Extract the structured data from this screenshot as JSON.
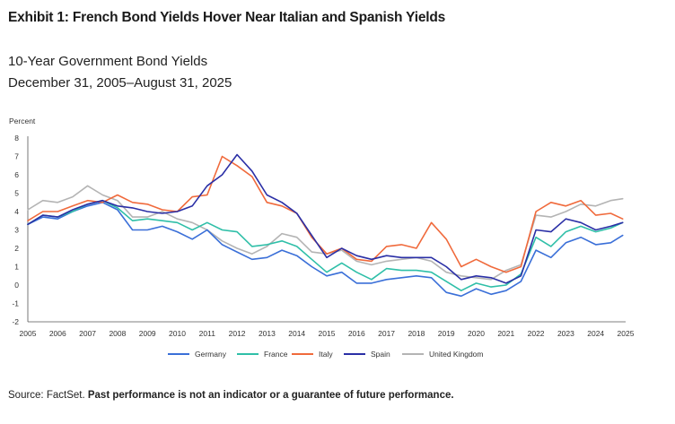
{
  "exhibit_title": "Exhibit 1: French Bond Yields Hover Near Italian and Spanish Yields",
  "subtitle_line1": "10-Year Government Bond Yields",
  "subtitle_line2": "December 31, 2005–August 31, 2025",
  "source_prefix": "Source: FactSet.",
  "source_note": "Past performance is not an indicator or a guarantee of future performance.",
  "chart_data": {
    "type": "line",
    "ylabel": "Percent",
    "xlabel": "",
    "ylim": [
      -2,
      8
    ],
    "xlim": [
      2005,
      2025
    ],
    "y_ticks": [
      "-2",
      "-1",
      "0",
      "1",
      "2",
      "3",
      "4",
      "5",
      "6",
      "7",
      "8"
    ],
    "x_ticks": [
      "2005",
      "2006",
      "2007",
      "2008",
      "2009",
      "2010",
      "2011",
      "2012",
      "2013",
      "2014",
      "2015",
      "2016",
      "2017",
      "2018",
      "2019",
      "2020",
      "2021",
      "2022",
      "2023",
      "2024",
      "2025"
    ],
    "grid": false,
    "legend": "bottom",
    "series": [
      {
        "name": "Germany",
        "color": "#3a6fd8",
        "x": [
          2005.0,
          2005.5,
          2006.0,
          2006.5,
          2007.0,
          2007.5,
          2008.0,
          2008.5,
          2009.0,
          2009.5,
          2010.0,
          2010.5,
          2011.0,
          2011.5,
          2012.0,
          2012.5,
          2013.0,
          2013.5,
          2014.0,
          2014.5,
          2015.0,
          2015.5,
          2016.0,
          2016.5,
          2017.0,
          2017.5,
          2018.0,
          2018.5,
          2019.0,
          2019.5,
          2020.0,
          2020.5,
          2021.0,
          2021.5,
          2022.0,
          2022.5,
          2023.0,
          2023.5,
          2024.0,
          2024.5,
          2024.9
        ],
        "y": [
          3.3,
          3.7,
          3.6,
          4.0,
          4.3,
          4.5,
          4.1,
          3.0,
          3.0,
          3.2,
          2.9,
          2.5,
          3.0,
          2.2,
          1.8,
          1.4,
          1.5,
          1.9,
          1.6,
          1.0,
          0.5,
          0.7,
          0.1,
          0.1,
          0.3,
          0.4,
          0.5,
          0.4,
          -0.4,
          -0.6,
          -0.2,
          -0.5,
          -0.3,
          0.2,
          1.9,
          1.5,
          2.3,
          2.6,
          2.2,
          2.3,
          2.7
        ]
      },
      {
        "name": "France",
        "color": "#2fbfa8",
        "x": [
          2005.0,
          2005.5,
          2006.0,
          2006.5,
          2007.0,
          2007.5,
          2008.0,
          2008.5,
          2009.0,
          2009.5,
          2010.0,
          2010.5,
          2011.0,
          2011.5,
          2012.0,
          2012.5,
          2013.0,
          2013.5,
          2014.0,
          2014.5,
          2015.0,
          2015.5,
          2016.0,
          2016.5,
          2017.0,
          2017.5,
          2018.0,
          2018.5,
          2019.0,
          2019.5,
          2020.0,
          2020.5,
          2021.0,
          2021.5,
          2022.0,
          2022.5,
          2023.0,
          2023.5,
          2024.0,
          2024.5,
          2024.9
        ],
        "y": [
          3.3,
          3.8,
          3.7,
          4.0,
          4.4,
          4.6,
          4.2,
          3.5,
          3.6,
          3.5,
          3.4,
          3.0,
          3.4,
          3.0,
          2.9,
          2.1,
          2.2,
          2.4,
          2.1,
          1.4,
          0.7,
          1.2,
          0.7,
          0.3,
          0.9,
          0.8,
          0.8,
          0.7,
          0.2,
          -0.3,
          0.1,
          -0.1,
          0.0,
          0.6,
          2.6,
          2.1,
          2.9,
          3.2,
          2.9,
          3.1,
          3.4
        ]
      },
      {
        "name": "Italy",
        "color": "#f06a3c",
        "x": [
          2005.0,
          2005.5,
          2006.0,
          2006.5,
          2007.0,
          2007.5,
          2008.0,
          2008.5,
          2009.0,
          2009.5,
          2010.0,
          2010.5,
          2011.0,
          2011.5,
          2012.0,
          2012.5,
          2013.0,
          2013.5,
          2014.0,
          2014.5,
          2015.0,
          2015.5,
          2016.0,
          2016.5,
          2017.0,
          2017.5,
          2018.0,
          2018.5,
          2019.0,
          2019.5,
          2020.0,
          2020.5,
          2021.0,
          2021.5,
          2022.0,
          2022.5,
          2023.0,
          2023.5,
          2024.0,
          2024.5,
          2024.9
        ],
        "y": [
          3.5,
          4.0,
          4.0,
          4.3,
          4.6,
          4.5,
          4.9,
          4.5,
          4.4,
          4.1,
          4.0,
          4.8,
          4.9,
          7.0,
          6.5,
          5.9,
          4.5,
          4.3,
          3.9,
          2.6,
          1.7,
          2.0,
          1.4,
          1.3,
          2.1,
          2.2,
          2.0,
          3.4,
          2.5,
          1.0,
          1.4,
          1.0,
          0.7,
          1.0,
          4.0,
          4.5,
          4.3,
          4.6,
          3.8,
          3.9,
          3.6
        ]
      },
      {
        "name": "Spain",
        "color": "#2a2fa6",
        "x": [
          2005.0,
          2005.5,
          2006.0,
          2006.5,
          2007.0,
          2007.5,
          2008.0,
          2008.5,
          2009.0,
          2009.5,
          2010.0,
          2010.5,
          2011.0,
          2011.5,
          2012.0,
          2012.5,
          2013.0,
          2013.5,
          2014.0,
          2014.5,
          2015.0,
          2015.5,
          2016.0,
          2016.5,
          2017.0,
          2017.5,
          2018.0,
          2018.5,
          2019.0,
          2019.5,
          2020.0,
          2020.5,
          2021.0,
          2021.5,
          2022.0,
          2022.5,
          2023.0,
          2023.5,
          2024.0,
          2024.5,
          2024.9
        ],
        "y": [
          3.3,
          3.8,
          3.7,
          4.1,
          4.4,
          4.6,
          4.3,
          4.2,
          4.0,
          3.9,
          4.0,
          4.3,
          5.4,
          6.0,
          7.1,
          6.2,
          4.9,
          4.5,
          3.9,
          2.7,
          1.5,
          2.0,
          1.6,
          1.4,
          1.6,
          1.5,
          1.5,
          1.5,
          1.0,
          0.3,
          0.5,
          0.4,
          0.1,
          0.5,
          3.0,
          2.9,
          3.6,
          3.4,
          3.0,
          3.2,
          3.4
        ]
      },
      {
        "name": "United Kingdom",
        "color": "#b4b4b4",
        "x": [
          2005.0,
          2005.5,
          2006.0,
          2006.5,
          2007.0,
          2007.5,
          2008.0,
          2008.5,
          2009.0,
          2009.5,
          2010.0,
          2010.5,
          2011.0,
          2011.5,
          2012.0,
          2012.5,
          2013.0,
          2013.5,
          2014.0,
          2014.5,
          2015.0,
          2015.5,
          2016.0,
          2016.5,
          2017.0,
          2017.5,
          2018.0,
          2018.5,
          2019.0,
          2019.5,
          2020.0,
          2020.5,
          2021.0,
          2021.5,
          2022.0,
          2022.5,
          2023.0,
          2023.5,
          2024.0,
          2024.5,
          2024.9
        ],
        "y": [
          4.1,
          4.6,
          4.5,
          4.8,
          5.4,
          4.9,
          4.6,
          3.7,
          3.7,
          4.0,
          3.6,
          3.4,
          3.0,
          2.4,
          2.0,
          1.7,
          2.1,
          2.8,
          2.6,
          1.8,
          1.7,
          1.9,
          1.3,
          1.1,
          1.3,
          1.4,
          1.5,
          1.3,
          0.7,
          0.5,
          0.4,
          0.3,
          0.8,
          1.1,
          3.8,
          3.7,
          4.0,
          4.4,
          4.3,
          4.6,
          4.7
        ]
      }
    ]
  }
}
